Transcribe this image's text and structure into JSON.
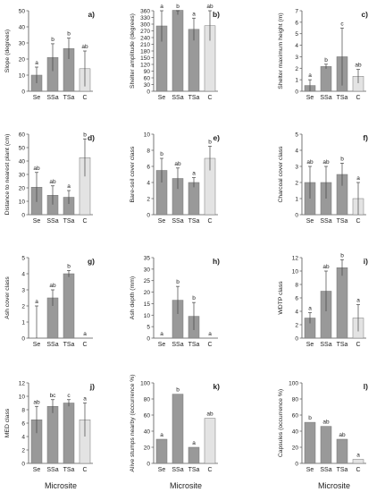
{
  "figure": {
    "xlabel": "Microsite"
  },
  "chart_data": [
    {
      "type": "bar",
      "panel": "a)",
      "ylabel": "Slope (degrees)",
      "categories": [
        "Se",
        "SSa",
        "TSa",
        "C"
      ],
      "values": [
        10,
        21,
        26.5,
        14
      ],
      "errors": [
        5,
        8.5,
        6.5,
        11
      ],
      "letters": [
        "a",
        "b",
        "b",
        "ab"
      ],
      "ylim": [
        0,
        50
      ],
      "yticks": [
        0,
        10,
        20,
        30,
        40,
        50
      ],
      "grid": false
    },
    {
      "type": "bar",
      "panel": "b)",
      "ylabel": "Shelter amplitude (degrees)",
      "categories": [
        "Se",
        "SSa",
        "TSa",
        "C"
      ],
      "values": [
        292,
        362,
        277,
        293
      ],
      "errors": [
        70,
        20,
        50,
        67
      ],
      "letters": [
        "a",
        "b",
        "a",
        "ab"
      ],
      "ylim": [
        0,
        360
      ],
      "yticks": [
        0,
        30,
        60,
        90,
        120,
        150,
        180,
        210,
        240,
        270,
        300,
        330,
        360
      ],
      "grid": false
    },
    {
      "type": "bar",
      "panel": "c)",
      "ylabel": "Shelter maximum height (m)",
      "categories": [
        "Se",
        "SSa",
        "TSa",
        "C"
      ],
      "values": [
        0.5,
        2.15,
        3,
        1.3
      ],
      "errors": [
        0.5,
        0.2,
        2.5,
        0.6
      ],
      "letters": [
        "a",
        "b",
        "c",
        "ab"
      ],
      "ylim": [
        0,
        7
      ],
      "yticks": [
        0,
        1,
        2,
        3,
        4,
        5,
        6,
        7
      ],
      "grid": false
    },
    {
      "type": "bar",
      "panel": "d)",
      "ylabel": "Distance to nearest plant  (cm)",
      "categories": [
        "Se",
        "SSa",
        "TSa",
        "C"
      ],
      "values": [
        20.5,
        14.5,
        13,
        42.5
      ],
      "errors": [
        11,
        7,
        5,
        14
      ],
      "letters": [
        "ab",
        "ab",
        "a",
        "b"
      ],
      "ylim": [
        0,
        60
      ],
      "yticks": [
        0,
        10,
        20,
        30,
        40,
        50,
        60
      ],
      "grid": false
    },
    {
      "type": "bar",
      "panel": "e)",
      "ylabel": "Bare-soil cover class",
      "categories": [
        "Se",
        "SSa",
        "TSa",
        "C"
      ],
      "values": [
        5.5,
        4.5,
        4,
        7
      ],
      "errors": [
        1.5,
        1.3,
        0.6,
        1.5
      ],
      "letters": [
        "b",
        "ab",
        "a",
        "b"
      ],
      "ylim": [
        0,
        10
      ],
      "yticks": [
        0,
        2,
        4,
        6,
        8,
        10
      ],
      "grid": false
    },
    {
      "type": "bar",
      "panel": "f)",
      "ylabel": "Charcoal cover class",
      "categories": [
        "Se",
        "SSa",
        "TSa",
        "C"
      ],
      "values": [
        2,
        2,
        2.5,
        1
      ],
      "errors": [
        1,
        1,
        0.7,
        1
      ],
      "letters": [
        "ab",
        "ab",
        "b",
        "a"
      ],
      "ylim": [
        0,
        5
      ],
      "yticks": [
        0,
        1,
        2,
        3,
        4,
        5
      ],
      "grid": false
    },
    {
      "type": "bar",
      "panel": "g)",
      "ylabel": "Ash cover class",
      "categories": [
        "Se",
        "SSa",
        "TSa",
        "C"
      ],
      "values": [
        0,
        2.5,
        4,
        0
      ],
      "errors": [
        2,
        0.5,
        0.2,
        0
      ],
      "letters": [
        "a",
        "ab",
        "b",
        "a"
      ],
      "ylim": [
        0,
        5
      ],
      "yticks": [
        0,
        1,
        2,
        3,
        4,
        5
      ],
      "grid": false
    },
    {
      "type": "bar",
      "panel": "h)",
      "ylabel": "Ash depth (mm)",
      "categories": [
        "Se",
        "SSa",
        "TSa",
        "C"
      ],
      "values": [
        0,
        16.5,
        9.5,
        0
      ],
      "errors": [
        0,
        6,
        6,
        0
      ],
      "letters": [
        "a",
        "b",
        "b",
        "a"
      ],
      "ylim": [
        0,
        35
      ],
      "yticks": [
        0,
        5,
        10,
        15,
        20,
        25,
        30,
        35
      ],
      "grid": false
    },
    {
      "type": "bar",
      "panel": "i)",
      "ylabel": "WDTP class",
      "categories": [
        "Se",
        "SSa",
        "TSa",
        "C"
      ],
      "values": [
        3,
        7,
        10.5,
        3
      ],
      "errors": [
        0.8,
        3,
        1.2,
        2
      ],
      "letters": [
        "a",
        "ab",
        "b",
        "a"
      ],
      "ylim": [
        0,
        12
      ],
      "yticks": [
        0,
        2,
        4,
        6,
        8,
        10,
        12
      ],
      "grid": false
    },
    {
      "type": "bar",
      "panel": "j)",
      "ylabel": "MED class",
      "categories": [
        "Se",
        "SSa",
        "TSa",
        "C"
      ],
      "values": [
        6.5,
        8.5,
        9,
        6.5
      ],
      "errors": [
        2,
        1,
        0.5,
        2.5
      ],
      "letters": [
        "ab",
        "bc",
        "c",
        "a"
      ],
      "ylim": [
        0,
        12
      ],
      "yticks": [
        0,
        2,
        4,
        6,
        8,
        10,
        12
      ],
      "grid": false
    },
    {
      "type": "bar",
      "panel": "k)",
      "ylabel": "Alive stumps nearby (occurrence %)",
      "categories": [
        "Se",
        "SSa",
        "TSa",
        "C"
      ],
      "values": [
        30,
        86,
        20,
        56
      ],
      "errors": [
        0,
        0,
        0,
        0
      ],
      "letters": [
        "a",
        "b",
        "a",
        "ab"
      ],
      "ylim": [
        0,
        100
      ],
      "yticks": [
        0,
        20,
        40,
        60,
        80,
        100
      ],
      "grid": false
    },
    {
      "type": "bar",
      "panel": "l)",
      "ylabel": "Capsules (occurrence %)",
      "categories": [
        "Se",
        "SSa",
        "TSa",
        "C"
      ],
      "values": [
        51,
        46,
        30,
        5
      ],
      "errors": [
        0,
        0,
        0,
        0
      ],
      "letters": [
        "b",
        "ab",
        "ab",
        "a"
      ],
      "ylim": [
        0,
        100
      ],
      "yticks": [
        0,
        20,
        40,
        60,
        80,
        100
      ],
      "grid": false
    }
  ],
  "colors": {
    "dark_bar": "#999999",
    "light_bar": "#e3e3e3",
    "axis": "#555555",
    "text": "#222222"
  }
}
